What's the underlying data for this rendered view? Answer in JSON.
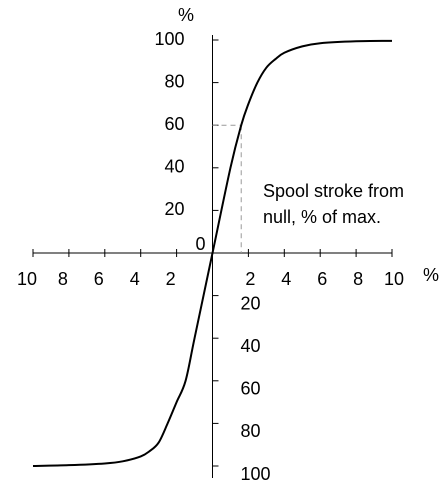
{
  "chart_data": {
    "type": "line",
    "xlabel": "%",
    "ylabel": "%",
    "annotation": [
      "Spool  stroke from",
      "null, % of max."
    ],
    "x": [
      -10,
      -8,
      -6,
      -5,
      -4,
      -3.5,
      -3,
      -2.5,
      -2,
      -1.5,
      -1,
      0,
      1,
      1.6,
      2,
      2.5,
      3,
      3.5,
      4,
      5,
      6,
      8,
      10
    ],
    "values": [
      -100,
      -99.6,
      -98.8,
      -97.8,
      -95.5,
      -93,
      -89,
      -80,
      -70,
      -60,
      -40,
      0,
      40,
      60,
      70,
      80,
      87,
      91,
      94,
      97,
      98.5,
      99.4,
      99.6
    ],
    "color": "#000000",
    "reference_point": {
      "x": 1.6,
      "y": 60
    },
    "xlim": [
      -10,
      10
    ],
    "ylim": [
      -100,
      100
    ],
    "xticks": [
      {
        "value": -10,
        "label": "10"
      },
      {
        "value": -8,
        "label": "8"
      },
      {
        "value": -6,
        "label": "6"
      },
      {
        "value": -4,
        "label": "4"
      },
      {
        "value": -2,
        "label": "2"
      },
      2,
      4,
      6,
      8,
      10
    ],
    "yticks": [
      {
        "value": -100,
        "label": "100"
      },
      {
        "value": -80,
        "label": "80"
      },
      {
        "value": -60,
        "label": "60"
      },
      {
        "value": -40,
        "label": "40"
      },
      {
        "value": -20,
        "label": "20"
      },
      0,
      20,
      40,
      60,
      80,
      100
    ]
  }
}
